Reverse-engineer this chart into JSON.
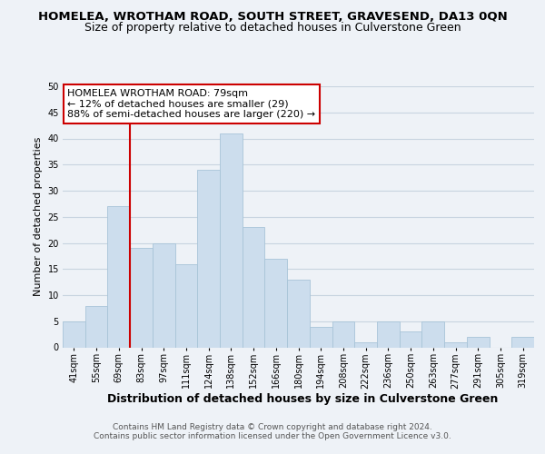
{
  "title": "HOMELEA, WROTHAM ROAD, SOUTH STREET, GRAVESEND, DA13 0QN",
  "subtitle": "Size of property relative to detached houses in Culverstone Green",
  "xlabel": "Distribution of detached houses by size in Culverstone Green",
  "ylabel": "Number of detached properties",
  "bin_labels": [
    "41sqm",
    "55sqm",
    "69sqm",
    "83sqm",
    "97sqm",
    "111sqm",
    "124sqm",
    "138sqm",
    "152sqm",
    "166sqm",
    "180sqm",
    "194sqm",
    "208sqm",
    "222sqm",
    "236sqm",
    "250sqm",
    "263sqm",
    "277sqm",
    "291sqm",
    "305sqm",
    "319sqm"
  ],
  "bar_values": [
    5,
    8,
    27,
    19,
    20,
    16,
    34,
    41,
    23,
    17,
    13,
    4,
    5,
    1,
    5,
    3,
    5,
    1,
    2,
    0,
    2
  ],
  "bar_color": "#ccdded",
  "bar_edge_color": "#a8c4d8",
  "ylim": [
    0,
    50
  ],
  "yticks": [
    0,
    5,
    10,
    15,
    20,
    25,
    30,
    35,
    40,
    45,
    50
  ],
  "annotation_title": "HOMELEA WROTHAM ROAD: 79sqm",
  "annotation_line1": "← 12% of detached houses are smaller (29)",
  "annotation_line2": "88% of semi-detached houses are larger (220) →",
  "annotation_box_color": "#ffffff",
  "annotation_box_edge": "#cc0000",
  "marker_line_color": "#cc0000",
  "footer_line1": "Contains HM Land Registry data © Crown copyright and database right 2024.",
  "footer_line2": "Contains public sector information licensed under the Open Government Licence v3.0.",
  "background_color": "#eef2f7",
  "plot_background": "#eef2f7",
  "grid_color": "#c8d4e0",
  "title_fontsize": 9.5,
  "subtitle_fontsize": 9,
  "xlabel_fontsize": 9,
  "ylabel_fontsize": 8,
  "tick_fontsize": 7,
  "footer_fontsize": 6.5,
  "annotation_fontsize": 8
}
